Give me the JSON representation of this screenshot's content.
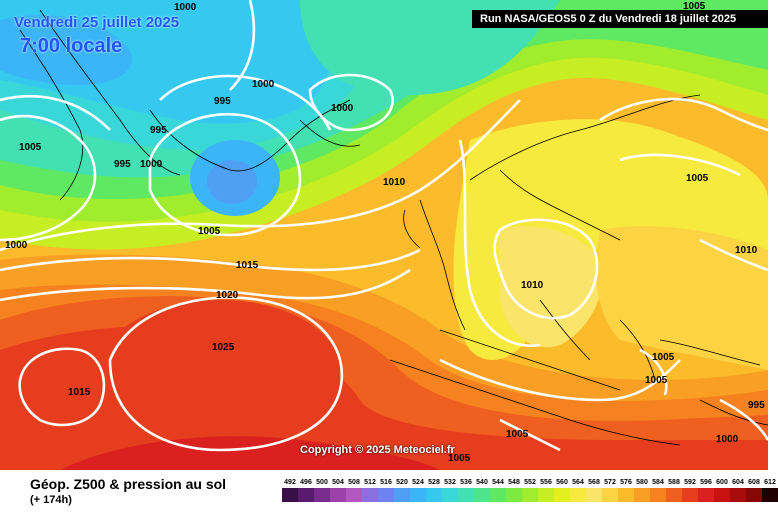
{
  "header": {
    "date": "Vendredi 25 juillet 2025",
    "time": "7:00 locale",
    "run": "Run NASA/GEOS5 0 Z du Vendredi 18 juillet 2025"
  },
  "copyright": "Copyright © 2025 Meteociel.fr",
  "footer": {
    "title": "Géop. Z500 & pression au sol",
    "subtitle": "(+ 174h)"
  },
  "legend": {
    "values": [
      "492",
      "496",
      "500",
      "504",
      "508",
      "512",
      "516",
      "520",
      "524",
      "528",
      "532",
      "536",
      "540",
      "544",
      "548",
      "552",
      "556",
      "560",
      "564",
      "568",
      "572",
      "576",
      "580",
      "584",
      "588",
      "592",
      "596",
      "600",
      "604",
      "608",
      "612"
    ],
    "colors": [
      "#3a0f47",
      "#5a1b6e",
      "#7a2c8c",
      "#9b41a8",
      "#b356c0",
      "#8a6fe0",
      "#6d84f0",
      "#4f9ff5",
      "#3bb5f7",
      "#35c9f0",
      "#3ad7d9",
      "#42e0b2",
      "#4de58a",
      "#5fe862",
      "#7dea42",
      "#a2ec2e",
      "#c6ee22",
      "#e6ef1e",
      "#f6ea3e",
      "#fae46a",
      "#fbd343",
      "#fbbb2b",
      "#f99f24",
      "#f5821f",
      "#ef5f1f",
      "#e63d1e",
      "#db2020",
      "#c81212",
      "#a80c0c",
      "#870707",
      "#200000"
    ]
  },
  "isobars": [
    "1000",
    "1000",
    "1000",
    "1005",
    "1005",
    "1005",
    "1005",
    "1005",
    "1005",
    "1005",
    "1005",
    "1000",
    "1000",
    "995",
    "995",
    "995",
    "1000",
    "1010",
    "1010",
    "1010",
    "1015",
    "1015",
    "1020",
    "1025",
    "995"
  ],
  "palette": {
    "accent_text": "#2255ff",
    "isobar": "#ffffff"
  }
}
